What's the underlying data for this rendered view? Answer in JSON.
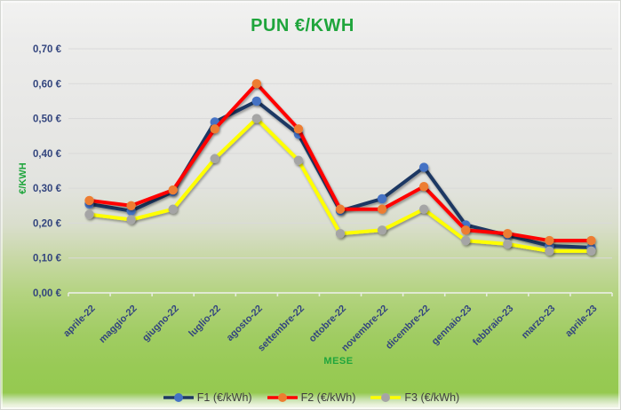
{
  "chart_data": {
    "type": "line",
    "title": "PUN €/KWH",
    "xlabel": "MESE",
    "ylabel": "€/KWH",
    "categories": [
      "aprile-22",
      "maggio-22",
      "giugno-22",
      "luglio-22",
      "agosto-22",
      "settembre-22",
      "ottobre-22",
      "novembre-22",
      "dicembre-22",
      "gennaio-23",
      "febbraio-23",
      "marzo-23",
      "aprile-23"
    ],
    "series": [
      {
        "name": "F1 (€/kWh)",
        "line_color": "#1F3864",
        "marker_color": "#4472C4",
        "values": [
          0.255,
          0.235,
          0.29,
          0.49,
          0.55,
          0.455,
          0.235,
          0.27,
          0.36,
          0.195,
          0.165,
          0.135,
          0.13
        ]
      },
      {
        "name": "F2 (€/kWh)",
        "line_color": "#FF0000",
        "marker_color": "#ED7D31",
        "values": [
          0.265,
          0.25,
          0.295,
          0.47,
          0.6,
          0.47,
          0.24,
          0.24,
          0.305,
          0.18,
          0.17,
          0.15,
          0.15
        ]
      },
      {
        "name": "F3 (€/kWh)",
        "line_color": "#FFFF00",
        "marker_color": "#A5A5A5",
        "values": [
          0.225,
          0.21,
          0.24,
          0.385,
          0.5,
          0.38,
          0.17,
          0.18,
          0.24,
          0.15,
          0.14,
          0.12,
          0.12
        ]
      }
    ],
    "ylim": [
      0,
      0.7
    ],
    "ytick_labels": [
      "0,00 €",
      "0,10 €",
      "0,20 €",
      "0,30 €",
      "0,40 €",
      "0,50 €",
      "0,60 €",
      "0,70 €"
    ],
    "grid": true,
    "legend_position": "bottom"
  },
  "colors": {
    "title_green": "#1FA53C",
    "axis_text_blue": "#33457E",
    "legend_text": "#3F3F3F",
    "gridline": "#D9D9D9",
    "axis_line": "#E7ECDE"
  }
}
